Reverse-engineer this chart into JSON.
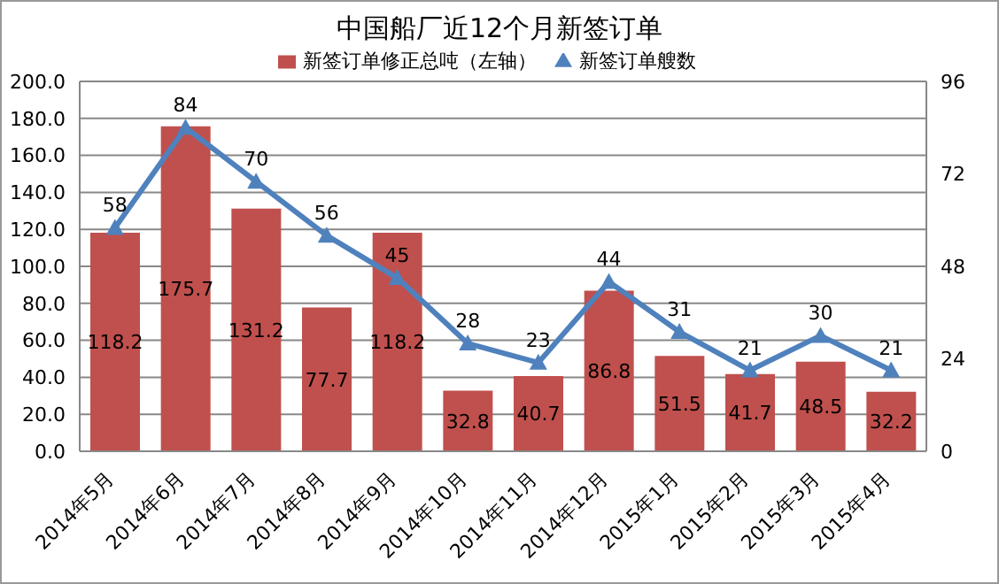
{
  "chart_data": {
    "type": "bar",
    "title": "中国船厂近12个月新签订单",
    "categories": [
      "2014年5月",
      "2014年6月",
      "2014年7月",
      "2014年8月",
      "2014年9月",
      "2014年10月",
      "2014年11月",
      "2014年12月",
      "2015年1月",
      "2015年2月",
      "2015年3月",
      "2015年4月"
    ],
    "series": [
      {
        "name": "新签订单修正总吨（左轴）",
        "color": "#c0504d",
        "values": [
          118.2,
          175.7,
          131.2,
          77.7,
          118.2,
          32.8,
          40.7,
          86.8,
          51.5,
          41.7,
          48.5,
          32.2
        ]
      },
      {
        "name": "新签订单艘数",
        "type": "line",
        "axis": "y2",
        "color": "#4f81bd",
        "marker": "triangle",
        "values": [
          58,
          84,
          70,
          56,
          45,
          28,
          23,
          44,
          31,
          21,
          30,
          21
        ]
      }
    ],
    "ylim": [
      0,
      200
    ],
    "yticks": [
      {
        "value": 0,
        "label": "0.0"
      },
      {
        "value": 20,
        "label": "20.0"
      },
      {
        "value": 40,
        "label": "40.0"
      },
      {
        "value": 60,
        "label": "60.0"
      },
      {
        "value": 80,
        "label": "80.0"
      },
      {
        "value": 100,
        "label": "100.0"
      },
      {
        "value": 120,
        "label": "120.0"
      },
      {
        "value": 140,
        "label": "140.0"
      },
      {
        "value": 160,
        "label": "160.0"
      },
      {
        "value": 180,
        "label": "180.0"
      },
      {
        "value": 200,
        "label": "200.0"
      }
    ],
    "y2lim": [
      0,
      96
    ],
    "y2ticks": [
      0,
      24,
      48,
      72,
      96
    ],
    "grid": "y",
    "legend": "top",
    "data_labels": true
  }
}
